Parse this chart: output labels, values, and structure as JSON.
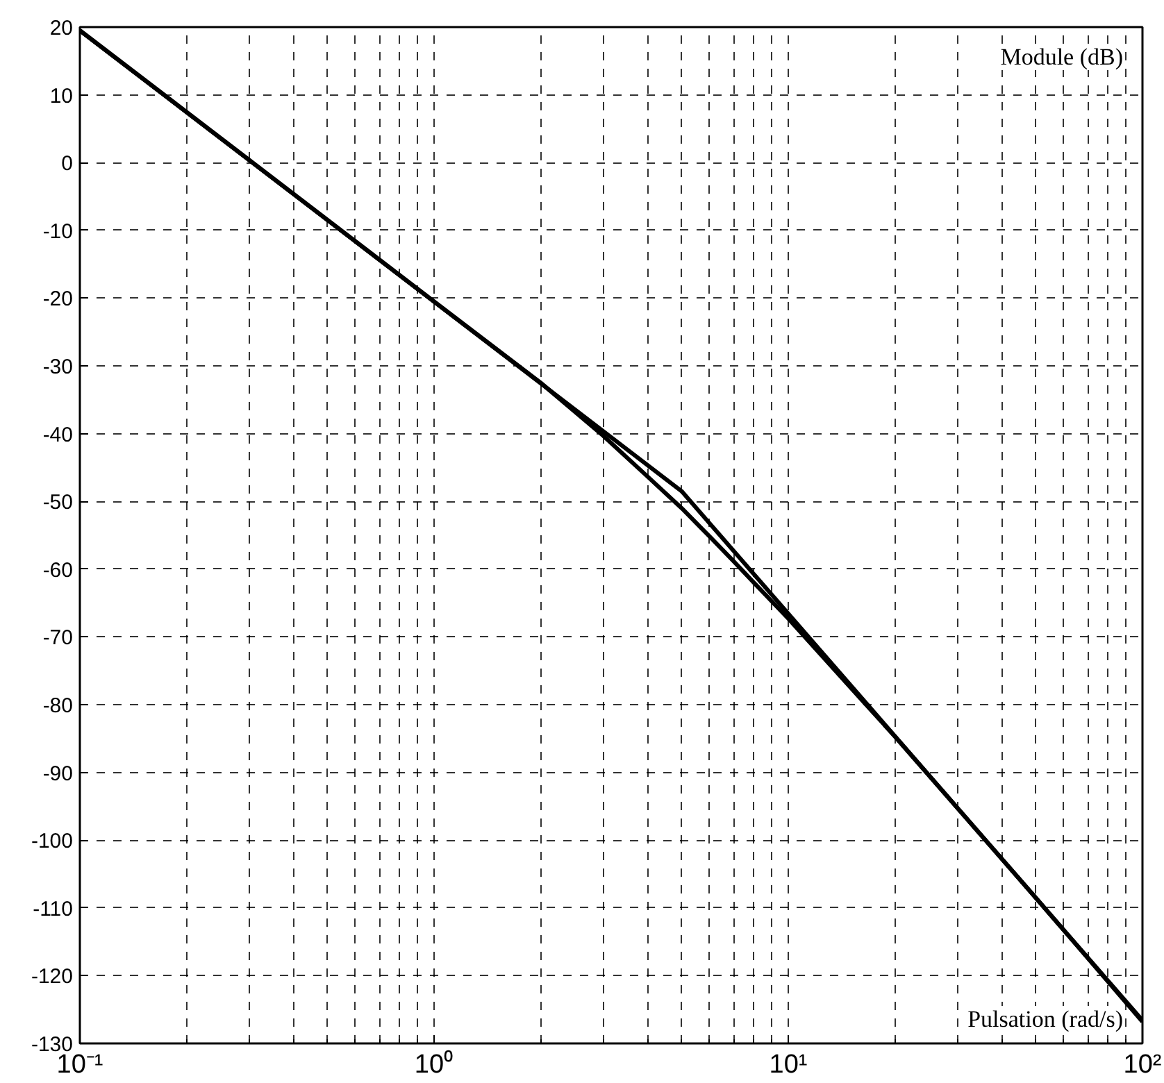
{
  "chart_data": {
    "type": "line",
    "xlabel": "Pulsation (rad/s)",
    "ylabel": "Module (dB)",
    "log": "x",
    "grid": true,
    "marker": "none",
    "line_style": "solid",
    "xlim": [
      0.1,
      100
    ],
    "ylim": [
      -130,
      20
    ],
    "xticks": [
      {
        "value": 0.1,
        "label": "10⁻¹"
      },
      {
        "value": 1,
        "label": "10⁰"
      },
      {
        "value": 10,
        "label": "10¹"
      },
      {
        "value": 100,
        "label": "10²"
      }
    ],
    "yticks": [
      -130,
      -120,
      -110,
      -100,
      -90,
      -80,
      -70,
      -60,
      -50,
      -40,
      -30,
      -20,
      -10,
      0,
      10,
      20
    ],
    "series": [
      {
        "color": "#000000",
        "x": [
          0.1,
          5,
          100
        ],
        "values": [
          19.5,
          -48.5,
          -126.6
        ]
      },
      {
        "color": "#000000",
        "x": [
          0.1,
          1,
          2,
          3,
          4,
          5,
          6,
          7,
          8,
          10,
          15,
          20,
          50,
          100
        ],
        "values": [
          19.5,
          -20.5,
          -32.5,
          -40.3,
          -46.3,
          -51,
          -55.2,
          -58.8,
          -62,
          -67.3,
          -77.5,
          -84.7,
          -108.5,
          -126.8
        ]
      }
    ]
  }
}
